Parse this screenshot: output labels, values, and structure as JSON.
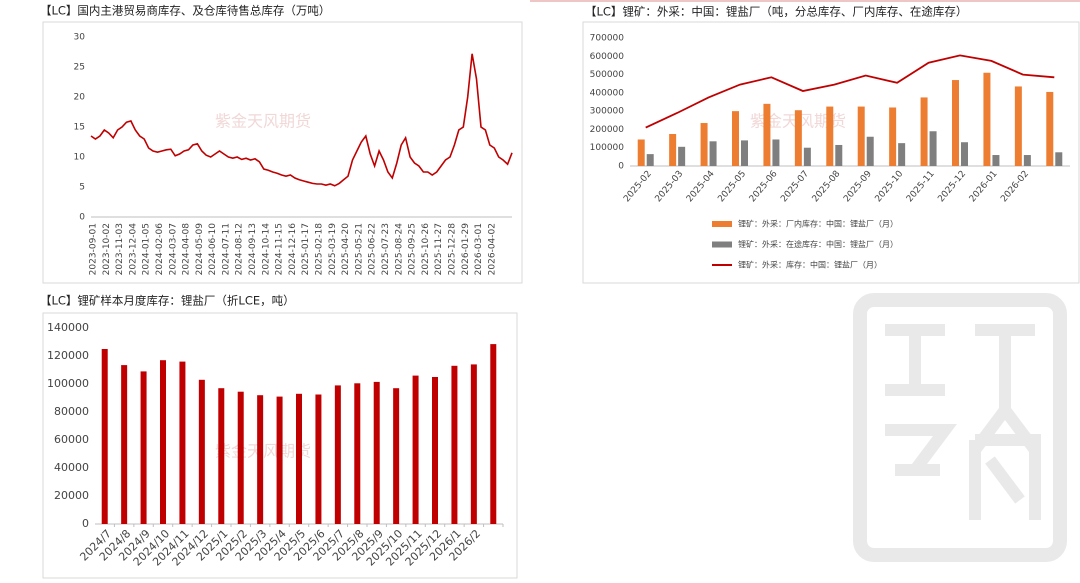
{
  "watermark": "紫金天风期货",
  "chart_data": [
    {
      "type": "line",
      "title": "【LC】国内主港贸易商库存、及仓库待售总库存（万吨）",
      "categories": [
        "2023-09-01",
        null,
        null,
        "2023-10-02",
        null,
        null,
        "2023-11-03",
        null,
        null,
        "2023-12-04",
        null,
        null,
        "2024-01-05",
        null,
        null,
        "2024-02-06",
        null,
        null,
        "2024-03-07",
        null,
        null,
        "2024-04-08",
        null,
        null,
        "2024-05-09",
        null,
        null,
        "2024-06-10",
        null,
        null,
        "2024-07-11",
        null,
        null,
        "2024-08-12",
        null,
        null,
        "2024-09-13",
        null,
        null,
        "2024-10-14",
        null,
        null,
        "2024-11-15",
        null,
        null,
        "2024-12-16",
        null,
        null,
        "2025-01-17",
        null,
        null,
        "2025-02-18",
        null,
        null,
        "2025-03-19",
        null,
        null,
        "2025-04-20",
        null,
        null,
        "2025-05-21",
        null,
        null,
        "2025-06-22",
        null,
        null,
        "2025-07-23",
        null,
        null,
        "2025-08-24",
        null,
        null,
        "2025-09-25",
        null,
        null,
        "2025-10-26",
        null,
        null,
        "2025-11-27",
        null,
        null,
        "2025-12-28",
        null,
        null,
        "2026-01-29",
        null,
        null,
        "2026-03-01",
        null,
        null,
        "2026-04-02",
        null,
        null,
        null,
        null,
        null
      ],
      "values": [
        13.5,
        13,
        13.5,
        14.5,
        14,
        13.2,
        14.5,
        15,
        15.8,
        16,
        14.5,
        13.5,
        13,
        11.5,
        11,
        10.8,
        11,
        11.2,
        11.3,
        10.2,
        10.5,
        11,
        11.2,
        12,
        12.2,
        11,
        10.3,
        10,
        10.5,
        11,
        10.5,
        10,
        9.8,
        10,
        9.6,
        9.8,
        9.5,
        9.7,
        9.2,
        8,
        7.8,
        7.5,
        7.3,
        7,
        6.8,
        7,
        6.5,
        6.2,
        6,
        5.8,
        5.6,
        5.5,
        5.5,
        5.3,
        5.5,
        5.2,
        5.6,
        6.2,
        6.8,
        9.5,
        11,
        12.5,
        13.5,
        10.5,
        8.5,
        11,
        9.5,
        7.5,
        6.5,
        9,
        12,
        13.2,
        10,
        9,
        8.5,
        7.5,
        7.5,
        7,
        7.5,
        8.5,
        9.5,
        10,
        12,
        14.5,
        15,
        20,
        27.2,
        23,
        15,
        14.5,
        12,
        11.5,
        10,
        9.5,
        8.8,
        10.7
      ],
      "color": "#c00000",
      "ylim": [
        0,
        30
      ],
      "yticks": [
        0,
        5,
        10,
        15,
        20,
        25,
        30
      ]
    },
    {
      "type": "combo",
      "title": "【LC】锂矿：外采：中国：锂盐厂（吨，分总库存、厂内库存、在途库存）",
      "categories": [
        "2025-02",
        "2025-03",
        "2025-04",
        "2025-05",
        "2025-06",
        "2025-07",
        "2025-08",
        "2025-09",
        "2025-10",
        "2025-11",
        "2025-12",
        "2026-01",
        "2026-02",
        null
      ],
      "series": [
        {
          "name": "锂矿：外采：厂内库存：中国：锂盐厂（月）",
          "type": "bar",
          "color": "#ed7d31",
          "values": [
            145000,
            175000,
            235000,
            300000,
            340000,
            305000,
            325000,
            325000,
            320000,
            375000,
            470000,
            510000,
            435000,
            405000
          ]
        },
        {
          "name": "锂矿：外采：在途库存：中国：锂盐厂（月）",
          "type": "bar",
          "color": "#7f7f7f",
          "values": [
            65000,
            105000,
            135000,
            140000,
            145000,
            100000,
            115000,
            160000,
            125000,
            190000,
            130000,
            60000,
            60000,
            75000
          ]
        },
        {
          "name": "锂矿：外采：库存：中国：锂盐厂（月）",
          "type": "line",
          "color": "#c00000",
          "values": [
            210000,
            290000,
            375000,
            445000,
            485000,
            410000,
            445000,
            495000,
            455000,
            565000,
            605000,
            575000,
            500000,
            485000
          ]
        }
      ],
      "ylim": [
        0,
        700000
      ],
      "yticks": [
        0,
        100000,
        200000,
        300000,
        400000,
        500000,
        600000,
        700000
      ]
    },
    {
      "type": "bar",
      "title": "【LC】锂矿样本月度库存：锂盐厂（折LCE，吨）",
      "categories": [
        "2024/7",
        "2024/8",
        "2024/9",
        "2024/10",
        "2024/11",
        "2024/12",
        "2025/1",
        "2025/2",
        "2025/3",
        "2025/4",
        "2025/5",
        "2025/6",
        "2025/7",
        "2025/8",
        "2025/9",
        "2025/10",
        "2025/11",
        "2025/12",
        "2026/1",
        "2026/2",
        null
      ],
      "values": [
        125000,
        113500,
        109000,
        117000,
        116000,
        103000,
        97000,
        94500,
        92000,
        91000,
        93000,
        92500,
        99000,
        100500,
        101500,
        97000,
        106000,
        105000,
        113000,
        114000,
        128500
      ],
      "color": "#c00000",
      "ylim": [
        0,
        140000
      ],
      "yticks": [
        0,
        20000,
        40000,
        60000,
        80000,
        100000,
        120000,
        140000
      ]
    }
  ]
}
